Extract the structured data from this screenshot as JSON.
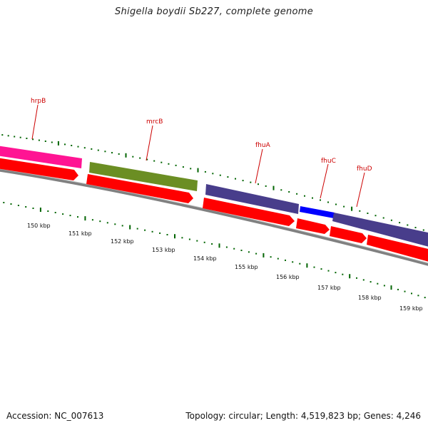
{
  "title": "Shigella boydii Sb227, complete genome",
  "footer": {
    "accession": "Accession: NC_007613",
    "summary": "Topology: circular; Length: 4,519,823 bp; Genes: 4,246"
  },
  "colors": {
    "hrpB": "#ff1493",
    "mrcB": "#6b8e23",
    "fhuA": "#483d8b",
    "fhuC": "#0000ff",
    "fhuD": "#483d8b",
    "cds": "#ff0000",
    "backbone": "#808080",
    "ticks": "#006400",
    "label": "#cc0000"
  },
  "genes": [
    {
      "name": "hrpB"
    },
    {
      "name": "mrcB"
    },
    {
      "name": "fhuA"
    },
    {
      "name": "fhuC"
    },
    {
      "name": "fhuD"
    }
  ],
  "scale": {
    "unit": "kbp",
    "labels": [
      "150 kbp",
      "151 kbp",
      "152 kbp",
      "153 kbp",
      "154 kbp",
      "155 kbp",
      "156 kbp",
      "157 kbp",
      "158 kbp",
      "159 kbp"
    ]
  }
}
